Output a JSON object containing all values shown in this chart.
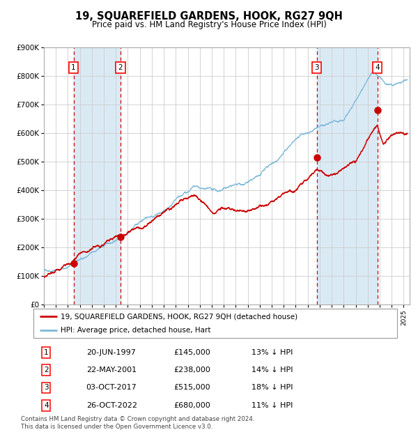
{
  "title": "19, SQUAREFIELD GARDENS, HOOK, RG27 9QH",
  "subtitle": "Price paid vs. HM Land Registry's House Price Index (HPI)",
  "purchases": [
    {
      "num": 1,
      "date": "20-JUN-1997",
      "year": 1997.47,
      "price": 145000,
      "pct": "13%"
    },
    {
      "num": 2,
      "date": "22-MAY-2001",
      "year": 2001.39,
      "price": 238000,
      "pct": "14%"
    },
    {
      "num": 3,
      "date": "03-OCT-2017",
      "year": 2017.75,
      "price": 515000,
      "pct": "18%"
    },
    {
      "num": 4,
      "date": "26-OCT-2022",
      "year": 2022.81,
      "price": 680000,
      "pct": "11%"
    }
  ],
  "xmin": 1995.0,
  "xmax": 2025.5,
  "ymin": 0,
  "ymax": 900000,
  "yticks": [
    0,
    100000,
    200000,
    300000,
    400000,
    500000,
    600000,
    700000,
    800000,
    900000
  ],
  "ytick_labels": [
    "£0",
    "£100K",
    "£200K",
    "£300K",
    "£400K",
    "£500K",
    "£600K",
    "£700K",
    "£800K",
    "£900K"
  ],
  "hpi_color": "#7ab8d9",
  "price_color": "#cc0000",
  "shade_color": "#daeaf5",
  "grid_color": "#cccccc",
  "dashed_color": "#cc0000",
  "legend_label_price": "19, SQUAREFIELD GARDENS, HOOK, RG27 9QH (detached house)",
  "legend_label_hpi": "HPI: Average price, detached house, Hart",
  "footer": "Contains HM Land Registry data © Crown copyright and database right 2024.\nThis data is licensed under the Open Government Licence v3.0.",
  "table_rows": [
    [
      "1",
      "20-JUN-1997",
      "£145,000",
      "13% ↓ HPI"
    ],
    [
      "2",
      "22-MAY-2001",
      "£238,000",
      "14% ↓ HPI"
    ],
    [
      "3",
      "03-OCT-2017",
      "£515,000",
      "18% ↓ HPI"
    ],
    [
      "4",
      "26-OCT-2022",
      "£680,000",
      "11% ↓ HPI"
    ]
  ]
}
